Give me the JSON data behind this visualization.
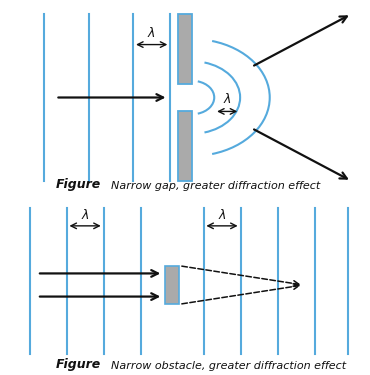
{
  "fig_width": 3.7,
  "fig_height": 3.75,
  "dpi": 100,
  "bg_color": "#ffffff",
  "line_color": "#55aadd",
  "barrier_color": "#aaaaaa",
  "barrier_edge": "#55aadd",
  "arrow_color": "#111111",
  "text_color": "#111111",
  "figure_label": "Figure",
  "caption1": "Narrow gap, greater diffraction effect",
  "caption2": "Narrow obstacle, greater diffraction effect",
  "lambda_symbol": "λ"
}
